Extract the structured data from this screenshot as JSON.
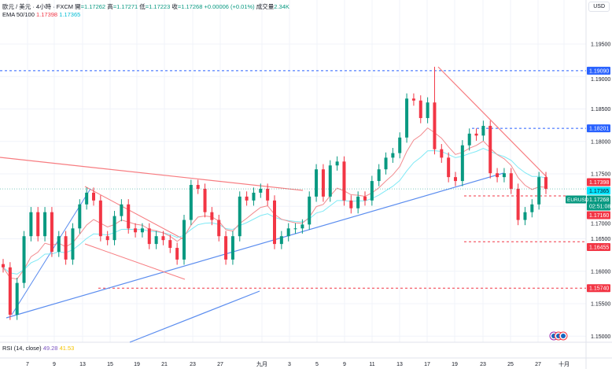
{
  "header": {
    "symbol": "歐元 / 美元 · 4小時 · FXCM",
    "open_label": "開",
    "open": "=1.17262",
    "high_label": "高",
    "high": "=1.17271",
    "low_label": "低",
    "low": "=1.17223",
    "close_label": "收",
    "close": "=1.17268",
    "change": "+0.00006 (+0.01%)",
    "volume_label": "成交量",
    "volume": "2.34K"
  },
  "ema": {
    "label": "EMA 50/100",
    "ema50": "1.17398",
    "ema100": "1.17365"
  },
  "currency": "USD",
  "rsi": {
    "label": "RSI (14, close)",
    "value1": "49.28",
    "value2": "41.53"
  },
  "colors": {
    "up": "#089981",
    "down": "#f23645",
    "ema50": "#f23645",
    "ema100": "#00e5ff",
    "blue_level": "#2962ff"
  },
  "chart_data": {
    "type": "candlestick",
    "title": "EUR/USD 4H",
    "ylim": [
      1.1465,
      1.2015
    ],
    "price_ticks": [
      "1.19500",
      "1.19000",
      "1.18500",
      "1.18000",
      "1.17500",
      "1.17000",
      "1.16500",
      "1.16000",
      "1.15500",
      "1.15000"
    ],
    "x_ticks": [
      "7",
      "9",
      "13",
      "15",
      "19",
      "21",
      "23",
      "27",
      "九月",
      "3",
      "5",
      "9",
      "11",
      "13",
      "17",
      "19",
      "23",
      "25",
      "27",
      "十月"
    ],
    "closes": [
      1.1606,
      1.1533,
      1.1582,
      1.1654,
      1.1691,
      1.1654,
      1.1691,
      1.163,
      1.1654,
      1.1618,
      1.1666,
      1.1703,
      1.1721,
      1.1709,
      1.1654,
      1.1648,
      1.1685,
      1.1703,
      1.1666,
      1.166,
      1.1666,
      1.1642,
      1.1654,
      1.1648,
      1.1636,
      1.1618,
      1.1679,
      1.1733,
      1.1727,
      1.1691,
      1.1679,
      1.1654,
      1.1618,
      1.1654,
      1.1715,
      1.1709,
      1.1721,
      1.1727,
      1.1709,
      1.1642,
      1.1654,
      1.1666,
      1.1666,
      1.1672,
      1.1715,
      1.1757,
      1.1715,
      1.1763,
      1.1769,
      1.1709,
      1.1697,
      1.1715,
      1.1709,
      1.1739,
      1.1757,
      1.1775,
      1.1782,
      1.1806,
      1.1866,
      1.1863,
      1.1836,
      1.186,
      1.1788,
      1.1775,
      1.1745,
      1.1739,
      1.1794,
      1.1812,
      1.1809,
      1.1824,
      1.1751,
      1.1745,
      1.1751,
      1.1727,
      1.1679,
      1.1691,
      1.1703,
      1.1745,
      1.17268
    ],
    "spike": {
      "index": 62,
      "high": 1.1915
    },
    "levels": [
      {
        "price": 1.1909,
        "label": "1.19090",
        "color": "#2962ff"
      },
      {
        "price": 1.18201,
        "label": "1.18201",
        "color": "#2962ff"
      },
      {
        "price": 1.1716,
        "label": "1.17160",
        "color": "#f23645"
      },
      {
        "price": 1.16455,
        "label": "1.16455",
        "color": "#f23645"
      },
      {
        "price": 1.1574,
        "label": "1.15740",
        "color": "#f23645"
      }
    ],
    "price_tags": [
      {
        "price": 1.17398,
        "label": "1.17398",
        "color": "#f23645"
      },
      {
        "price": 1.17365,
        "label": "1.17365",
        "color": "#00e5ff"
      }
    ],
    "last": {
      "symbol": "EURUSD",
      "price": 1.17268,
      "label": "1.17268",
      "countdown": "02:51:08"
    }
  }
}
